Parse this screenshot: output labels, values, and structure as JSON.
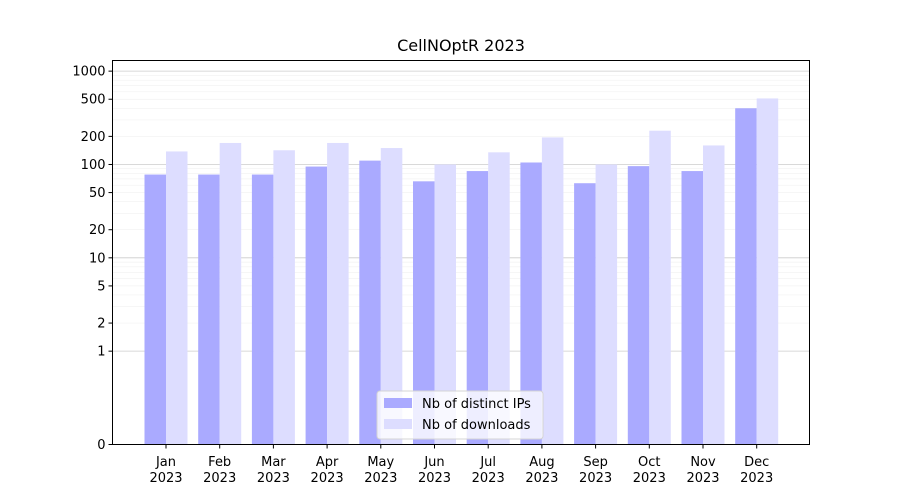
{
  "chart_data": {
    "type": "bar",
    "title": "CellNOptR 2023",
    "xlabel": "",
    "ylabel": "",
    "yscale": "symlog",
    "ylim": [
      0,
      1300
    ],
    "grid": true,
    "legend_position": "bottom-center",
    "categories": [
      [
        "Jan",
        "2023"
      ],
      [
        "Feb",
        "2023"
      ],
      [
        "Mar",
        "2023"
      ],
      [
        "Apr",
        "2023"
      ],
      [
        "May",
        "2023"
      ],
      [
        "Jun",
        "2023"
      ],
      [
        "Jul",
        "2023"
      ],
      [
        "Aug",
        "2023"
      ],
      [
        "Sep",
        "2023"
      ],
      [
        "Oct",
        "2023"
      ],
      [
        "Nov",
        "2023"
      ],
      [
        "Dec",
        "2023"
      ]
    ],
    "yticks": [
      0,
      1,
      2,
      5,
      10,
      20,
      50,
      100,
      200,
      500,
      1000
    ],
    "series": [
      {
        "name": "Nb of distinct IPs",
        "color": "#aaaaff",
        "values": [
          78,
          78,
          78,
          95,
          110,
          66,
          85,
          105,
          63,
          96,
          85,
          400
        ]
      },
      {
        "name": "Nb of downloads",
        "color": "#ddddff",
        "values": [
          138,
          170,
          142,
          170,
          150,
          100,
          135,
          195,
          100,
          230,
          160,
          510
        ]
      }
    ]
  }
}
